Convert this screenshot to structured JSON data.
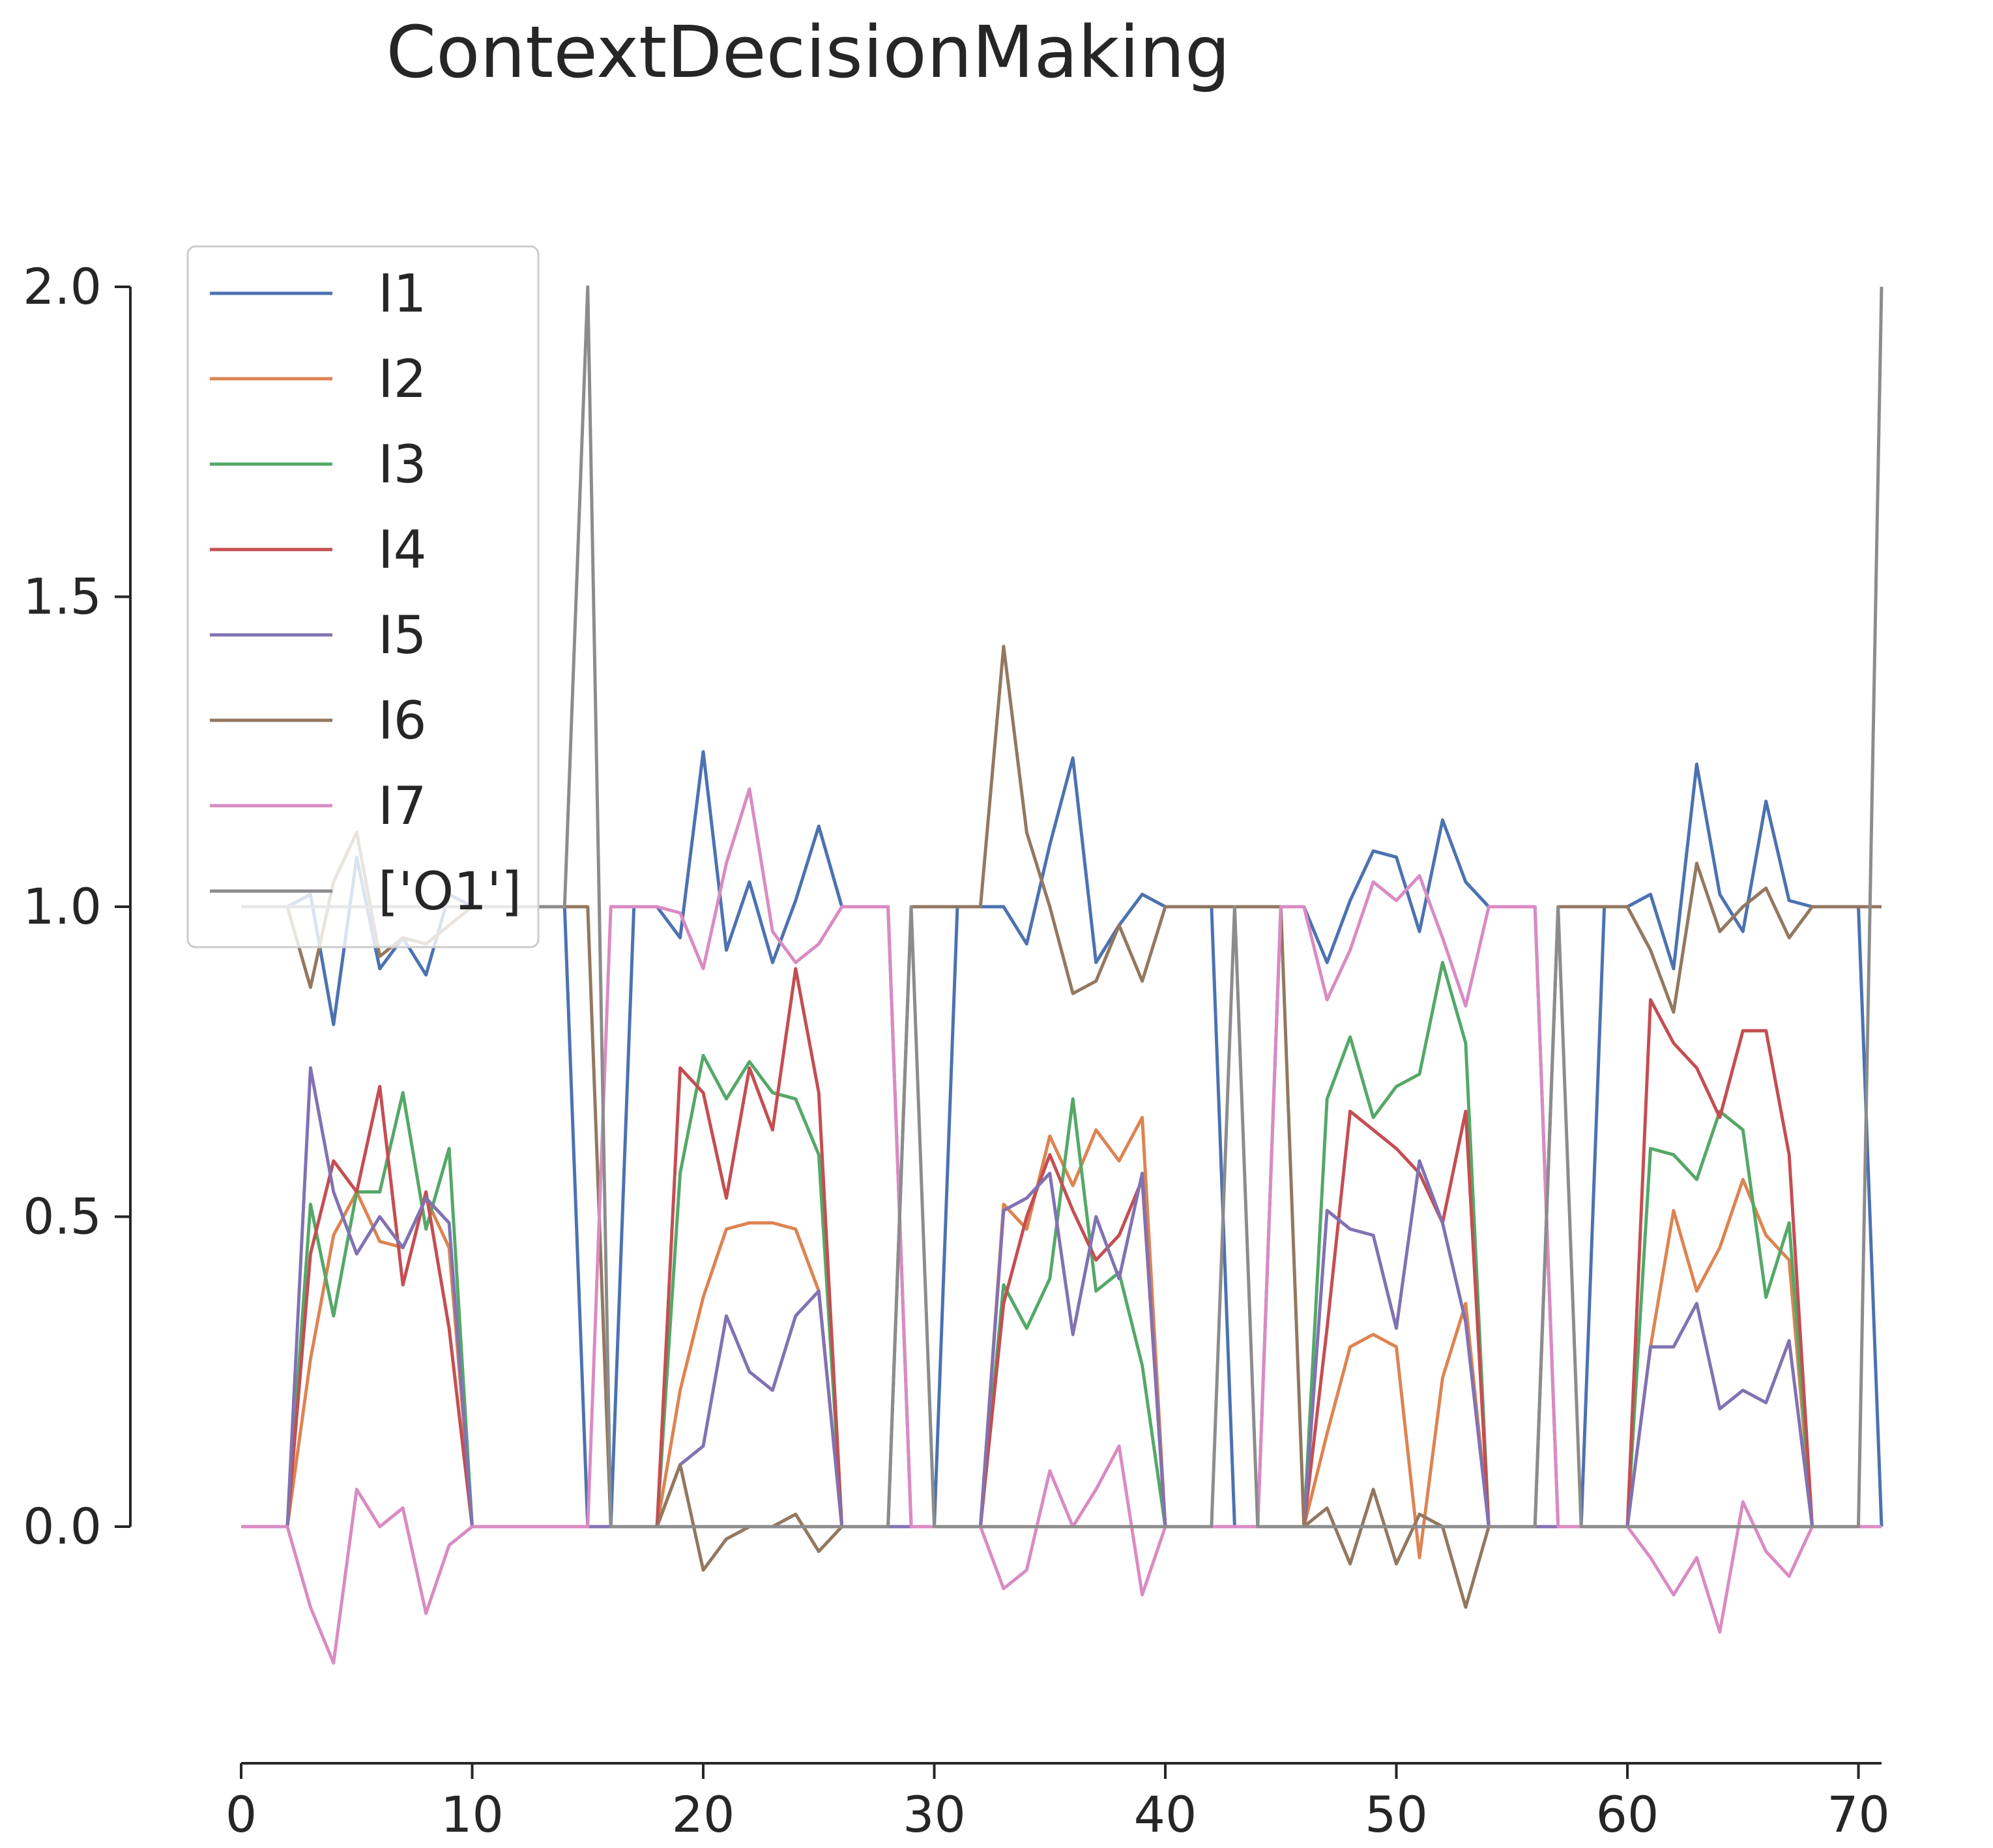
{
  "chart_data": {
    "type": "line",
    "title": "ContextDecisionMaking",
    "xlabel": "",
    "ylabel": "",
    "xlim": [
      0,
      71
    ],
    "ylim": [
      -0.3,
      2.0
    ],
    "xticks": [
      0,
      10,
      20,
      30,
      40,
      50,
      60,
      70
    ],
    "yticks": [
      0.0,
      0.5,
      1.0,
      1.5,
      2.0
    ],
    "xtick_labels": [
      "0",
      "10",
      "20",
      "30",
      "40",
      "50",
      "60",
      "70"
    ],
    "ytick_labels": [
      "0.0",
      "0.5",
      "1.0",
      "1.5",
      "2.0"
    ],
    "grid": false,
    "legend_position": "upper-left",
    "x": [
      0,
      1,
      2,
      3,
      4,
      5,
      6,
      7,
      8,
      9,
      10,
      11,
      12,
      13,
      14,
      15,
      16,
      17,
      18,
      19,
      20,
      21,
      22,
      23,
      24,
      25,
      26,
      27,
      28,
      29,
      30,
      31,
      32,
      33,
      34,
      35,
      36,
      37,
      38,
      39,
      40,
      41,
      42,
      43,
      44,
      45,
      46,
      47,
      48,
      49,
      50,
      51,
      52,
      53,
      54,
      55,
      56,
      57,
      58,
      59,
      60,
      61,
      62,
      63,
      64,
      65,
      66,
      67,
      68,
      69,
      70,
      71
    ],
    "series": [
      {
        "name": "I1",
        "color": "#4c72b0",
        "values": [
          1,
          1,
          1,
          1.02,
          0.81,
          1.08,
          0.9,
          0.95,
          0.89,
          1.02,
          1,
          1,
          1,
          1,
          1,
          0,
          0,
          1,
          1,
          0.95,
          1.25,
          0.93,
          1.04,
          0.91,
          1.01,
          1.13,
          1,
          1,
          1,
          0,
          0,
          1,
          1,
          1,
          0.94,
          1.1,
          1.24,
          0.91,
          0.97,
          1.02,
          1,
          1,
          1,
          0,
          0,
          1,
          1,
          0.91,
          1.01,
          1.09,
          1.08,
          0.96,
          1.14,
          1.04,
          1,
          1,
          1,
          0,
          0,
          1,
          1,
          1.02,
          0.9,
          1.23,
          1.02,
          0.96,
          1.17,
          1.01,
          1,
          1,
          1,
          0
        ]
      },
      {
        "name": "I2",
        "color": "#dd8452",
        "values": [
          0,
          0,
          0,
          0.27,
          0.47,
          0.54,
          0.46,
          0.45,
          0.53,
          0.45,
          0,
          0,
          0,
          0,
          0,
          0,
          0,
          0,
          0,
          0.22,
          0.37,
          0.48,
          0.49,
          0.49,
          0.48,
          0.38,
          0,
          0,
          0,
          0,
          0,
          0,
          0,
          0.52,
          0.48,
          0.63,
          0.55,
          0.64,
          0.59,
          0.66,
          0,
          0,
          0,
          0,
          0,
          0,
          0,
          0.15,
          0.29,
          0.31,
          0.29,
          -0.05,
          0.24,
          0.36,
          0,
          0,
          0,
          0,
          0,
          0,
          0,
          0.29,
          0.51,
          0.38,
          0.45,
          0.56,
          0.47,
          0.43,
          0,
          0,
          0,
          0
        ]
      },
      {
        "name": "I3",
        "color": "#55a868",
        "values": [
          0,
          0,
          0,
          0.52,
          0.34,
          0.54,
          0.54,
          0.7,
          0.48,
          0.61,
          0,
          0,
          0,
          0,
          0,
          0,
          0,
          0,
          0,
          0.57,
          0.76,
          0.69,
          0.75,
          0.7,
          0.69,
          0.6,
          0,
          0,
          0,
          0,
          0,
          0,
          0,
          0.39,
          0.32,
          0.4,
          0.69,
          0.38,
          0.41,
          0.26,
          0,
          0,
          0,
          0,
          0,
          0,
          0,
          0.69,
          0.79,
          0.66,
          0.71,
          0.73,
          0.91,
          0.78,
          0,
          0,
          0,
          0,
          0,
          0,
          0,
          0.61,
          0.6,
          0.56,
          0.67,
          0.64,
          0.37,
          0.49,
          0,
          0,
          0,
          0
        ]
      },
      {
        "name": "I4",
        "color": "#c44e52",
        "values": [
          0,
          0,
          0,
          0.44,
          0.59,
          0.54,
          0.71,
          0.39,
          0.54,
          0.32,
          0,
          0,
          0,
          0,
          0,
          0,
          0,
          0,
          0,
          0.74,
          0.7,
          0.53,
          0.74,
          0.64,
          0.9,
          0.7,
          0,
          0,
          0,
          0,
          0,
          0,
          0,
          0.36,
          0.5,
          0.6,
          0.51,
          0.43,
          0.47,
          0.56,
          0,
          0,
          0,
          0,
          0,
          0,
          0,
          0.32,
          0.67,
          0.64,
          0.61,
          0.57,
          0.49,
          0.67,
          0,
          0,
          0,
          0,
          0,
          0,
          0,
          0.85,
          0.78,
          0.74,
          0.66,
          0.8,
          0.8,
          0.6,
          0,
          0,
          0,
          0
        ]
      },
      {
        "name": "I5",
        "color": "#8172b3",
        "values": [
          0,
          0,
          0,
          0.74,
          0.54,
          0.44,
          0.5,
          0.45,
          0.53,
          0.49,
          0,
          0,
          0,
          0,
          0,
          0,
          0,
          0,
          0,
          0.1,
          0.13,
          0.34,
          0.25,
          0.22,
          0.34,
          0.38,
          0,
          0,
          0,
          0,
          0,
          0,
          0,
          0.51,
          0.53,
          0.57,
          0.31,
          0.5,
          0.4,
          0.57,
          0,
          0,
          0,
          0,
          0,
          0,
          0,
          0.51,
          0.48,
          0.47,
          0.32,
          0.59,
          0.49,
          0.33,
          0,
          0,
          0,
          0,
          0,
          0,
          0,
          0.29,
          0.29,
          0.36,
          0.19,
          0.22,
          0.2,
          0.3,
          0,
          0,
          0,
          0
        ]
      },
      {
        "name": "I6",
        "color": "#937860",
        "values": [
          1,
          1,
          1,
          0.87,
          1.04,
          1.12,
          0.92,
          0.95,
          0.94,
          0.97,
          1,
          1,
          1,
          1,
          1,
          1,
          0,
          0,
          0,
          0.1,
          -0.07,
          -0.02,
          0,
          0,
          0.02,
          -0.04,
          0,
          0,
          0,
          1,
          1,
          1,
          1,
          1.42,
          1.12,
          1,
          0.86,
          0.88,
          0.97,
          0.88,
          1,
          1,
          1,
          1,
          1,
          1,
          0,
          0.03,
          -0.06,
          0.06,
          -0.06,
          0.02,
          0,
          -0.13,
          0,
          0,
          0,
          1,
          1,
          1,
          1,
          0.93,
          0.83,
          1.07,
          0.96,
          1,
          1.03,
          0.95,
          1,
          1,
          1,
          1
        ]
      },
      {
        "name": "I7",
        "color": "#da8bc3",
        "values": [
          0,
          0,
          0,
          -0.13,
          -0.22,
          0.06,
          0,
          0.03,
          -0.14,
          -0.03,
          0,
          0,
          0,
          0,
          0,
          0,
          1,
          1,
          1,
          0.99,
          0.9,
          1.07,
          1.19,
          0.96,
          0.91,
          0.94,
          1,
          1,
          1,
          0,
          0,
          0,
          0,
          -0.1,
          -0.07,
          0.09,
          0,
          0.06,
          0.13,
          -0.11,
          0,
          0,
          0,
          0,
          0,
          1,
          1,
          0.85,
          0.93,
          1.04,
          1.01,
          1.05,
          0.95,
          0.84,
          1,
          1,
          1,
          0,
          0,
          0,
          0,
          -0.05,
          -0.11,
          -0.05,
          -0.17,
          0.04,
          -0.04,
          -0.08,
          0,
          0,
          0,
          0
        ]
      },
      {
        "name": "['O1']",
        "color": "#8c8c8c",
        "values": [
          1,
          1,
          1,
          1,
          1,
          1,
          1,
          1,
          1,
          1,
          1,
          1,
          1,
          1,
          1,
          2,
          0,
          0,
          0,
          0,
          0,
          0,
          0,
          0,
          0,
          0,
          0,
          0,
          0,
          1,
          0,
          0,
          0,
          0,
          0,
          0,
          0,
          0,
          0,
          0,
          0,
          0,
          0,
          1,
          0,
          0,
          0,
          0,
          0,
          0,
          0,
          0,
          0,
          0,
          0,
          0,
          0,
          1,
          0,
          0,
          0,
          0,
          0,
          0,
          0,
          0,
          0,
          0,
          0,
          0,
          0,
          2
        ]
      }
    ]
  }
}
